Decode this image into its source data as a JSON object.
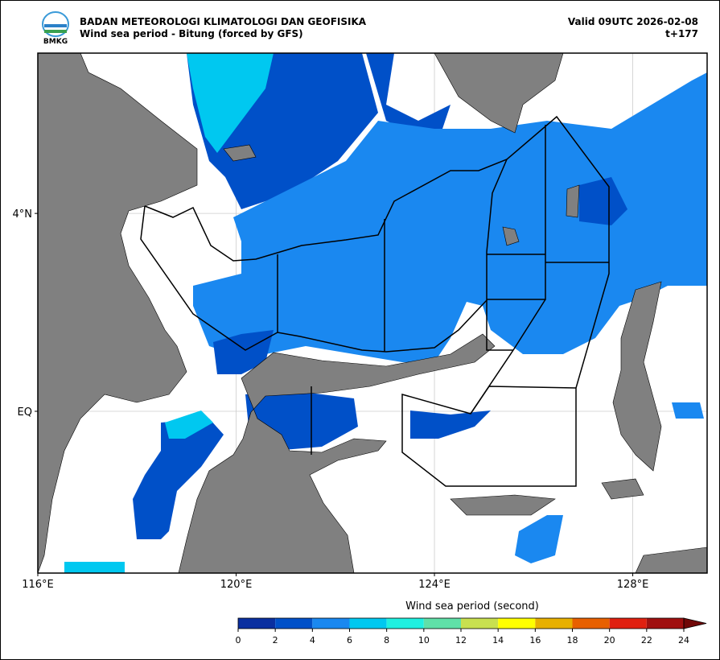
{
  "map": {
    "logo_text": "BMKG",
    "title": "BADAN METEOROLOGI KLIMATOLOGI DAN GEOFISIKA",
    "subtitle": "Wind sea period - Bitung (forced by GFS)",
    "valid": "Valid 09UTC 2026-02-08",
    "lead": "t+177",
    "lonlim": [
      116,
      129.5
    ],
    "latlim": [
      -3.27,
      7.24
    ],
    "lonticks": [
      {
        "value": 116,
        "label": "116°E"
      },
      {
        "value": 120,
        "label": "120°E"
      },
      {
        "value": 124,
        "label": "124°E"
      },
      {
        "value": 128,
        "label": "128°E"
      }
    ],
    "latticks": [
      {
        "value": 4,
        "label": "4°N"
      },
      {
        "value": 0,
        "label": "EQ"
      }
    ],
    "grid": true,
    "colorbar": {
      "label": "Wind sea period (second)",
      "ticks": [
        0,
        2,
        4,
        6,
        8,
        10,
        12,
        14,
        16,
        18,
        20,
        22,
        24
      ],
      "colors": [
        "#0a2fa0",
        "#0050c8",
        "#1a88f0",
        "#00c8f0",
        "#20f0e0",
        "#60e0a8",
        "#c8e050",
        "#ffff00",
        "#e8b000",
        "#e86000",
        "#e02010",
        "#a01010"
      ],
      "extend_color": "#700808"
    }
  }
}
